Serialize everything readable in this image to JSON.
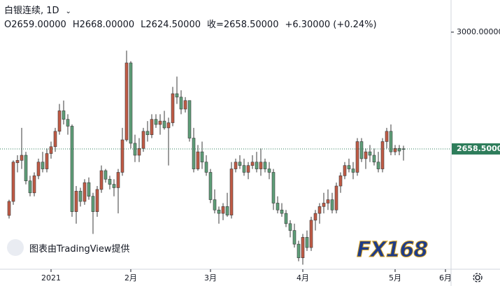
{
  "header": {
    "title": "白银连续, 1D",
    "items": [
      "O2659.00000",
      "H2668.00000",
      "L2624.50000",
      "收=2658.50000",
      "+6.30000 (+0.24%)"
    ]
  },
  "watermark": "图表由TradingView提供",
  "logo": "FX168",
  "chart_data": {
    "type": "candlestick",
    "up_color": "#c05a45",
    "down_color": "#5e9e78",
    "open": [
      2464,
      2505,
      2618,
      2625,
      2640,
      2565,
      2530,
      2580,
      2620,
      2600,
      2645,
      2665,
      2710,
      2770,
      2745,
      2725,
      2475,
      2535,
      2505,
      2560,
      2520,
      2475,
      2540,
      2595,
      2570,
      2555,
      2545,
      2590,
      2685,
      2910,
      2675,
      2640,
      2660,
      2710,
      2700,
      2745,
      2730,
      2740,
      2720,
      2735,
      2820,
      2810,
      2775,
      2800,
      2690,
      2600,
      2650,
      2620,
      2590,
      2510,
      2480,
      2470,
      2490,
      2465,
      2600,
      2620,
      2610,
      2590,
      2610,
      2620,
      2600,
      2620,
      2600,
      2590,
      2500,
      2480,
      2470,
      2440,
      2420,
      2380,
      2340,
      2400,
      2370,
      2450,
      2470,
      2490,
      2500,
      2510,
      2480,
      2550,
      2580,
      2610,
      2600,
      2590,
      2680,
      2630,
      2650,
      2640,
      2620,
      2600,
      2680,
      2710,
      2650,
      2660,
      2659
    ],
    "high": [
      2510,
      2625,
      2640,
      2720,
      2650,
      2580,
      2590,
      2630,
      2650,
      2660,
      2680,
      2720,
      2790,
      2800,
      2760,
      2730,
      2550,
      2545,
      2570,
      2575,
      2530,
      2550,
      2610,
      2600,
      2580,
      2570,
      2600,
      2720,
      2946,
      2915,
      2700,
      2690,
      2720,
      2740,
      2760,
      2760,
      2760,
      2770,
      2750,
      2840,
      2870,
      2830,
      2810,
      2800,
      2720,
      2670,
      2680,
      2640,
      2600,
      2540,
      2490,
      2500,
      2530,
      2620,
      2630,
      2640,
      2630,
      2620,
      2640,
      2650,
      2660,
      2630,
      2620,
      2600,
      2520,
      2500,
      2480,
      2450,
      2440,
      2390,
      2410,
      2420,
      2460,
      2480,
      2500,
      2530,
      2540,
      2530,
      2560,
      2590,
      2620,
      2630,
      2620,
      2690,
      2690,
      2660,
      2670,
      2660,
      2650,
      2690,
      2720,
      2730,
      2670,
      2670,
      2668
    ],
    "low": [
      2455,
      2495,
      2590,
      2600,
      2555,
      2520,
      2520,
      2570,
      2590,
      2590,
      2630,
      2650,
      2700,
      2730,
      2700,
      2460,
      2440,
      2490,
      2495,
      2510,
      2410,
      2460,
      2530,
      2560,
      2540,
      2520,
      2470,
      2580,
      2680,
      2660,
      2620,
      2620,
      2650,
      2680,
      2690,
      2720,
      2700,
      2715,
      2610,
      2725,
      2790,
      2760,
      2765,
      2680,
      2590,
      2595,
      2600,
      2580,
      2500,
      2470,
      2440,
      2450,
      2460,
      2455,
      2590,
      2600,
      2580,
      2570,
      2600,
      2590,
      2580,
      2590,
      2570,
      2480,
      2470,
      2460,
      2430,
      2400,
      2370,
      2330,
      2320,
      2360,
      2360,
      2420,
      2440,
      2470,
      2480,
      2470,
      2470,
      2530,
      2570,
      2590,
      2570,
      2580,
      2620,
      2600,
      2620,
      2610,
      2590,
      2590,
      2660,
      2640,
      2640,
      2640,
      2624.5
    ],
    "close": [
      2505,
      2620,
      2625,
      2640,
      2565,
      2530,
      2580,
      2620,
      2600,
      2645,
      2665,
      2710,
      2770,
      2745,
      2725,
      2475,
      2535,
      2505,
      2560,
      2520,
      2475,
      2540,
      2595,
      2570,
      2555,
      2545,
      2590,
      2685,
      2910,
      2675,
      2640,
      2660,
      2710,
      2700,
      2745,
      2730,
      2740,
      2720,
      2735,
      2820,
      2810,
      2775,
      2800,
      2690,
      2600,
      2650,
      2620,
      2590,
      2510,
      2480,
      2470,
      2490,
      2465,
      2600,
      2620,
      2610,
      2590,
      2610,
      2620,
      2600,
      2620,
      2600,
      2590,
      2500,
      2480,
      2470,
      2440,
      2420,
      2380,
      2340,
      2400,
      2370,
      2450,
      2470,
      2490,
      2500,
      2510,
      2480,
      2550,
      2580,
      2610,
      2600,
      2590,
      2680,
      2630,
      2650,
      2640,
      2620,
      2600,
      2680,
      2710,
      2650,
      2660,
      2652.2,
      2658.5
    ],
    "xlim": [
      -2,
      105
    ],
    "xticks": [
      {
        "value": 10,
        "label": "2021"
      },
      {
        "value": 29,
        "label": "2月"
      },
      {
        "value": 48,
        "label": "3月"
      },
      {
        "value": 70,
        "label": "4月"
      },
      {
        "value": 92,
        "label": "5月"
      },
      {
        "value": 104,
        "label": "6月"
      }
    ],
    "ylim": [
      2306.7,
      3094
    ],
    "yticks": [
      {
        "value": 3000,
        "label": "3000.00000"
      }
    ],
    "last_price": {
      "value": 2658.5,
      "label": "2658.50000",
      "color": "#2e7d5b"
    },
    "grid": false
  }
}
